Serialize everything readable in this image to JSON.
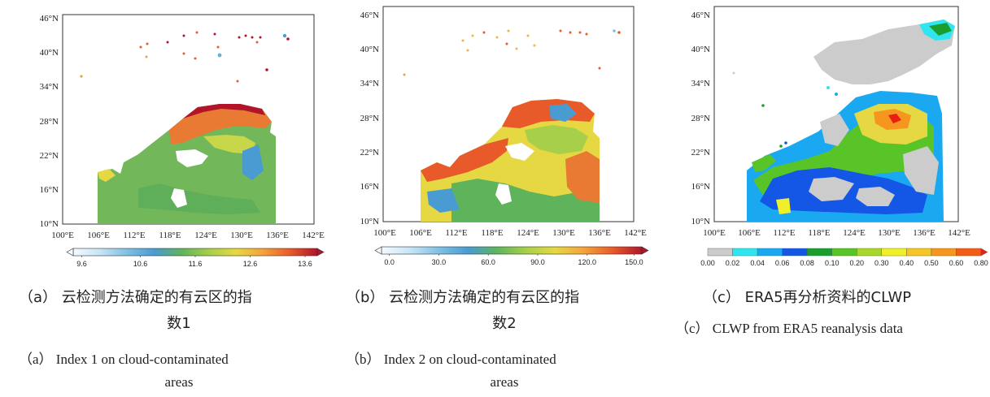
{
  "panels": [
    {
      "id": "a",
      "lat_labels": [
        "46°N",
        "40°N",
        "34°N",
        "28°N",
        "22°N",
        "16°N",
        "10°N"
      ],
      "lon_labels": [
        "100°E",
        "106°E",
        "112°E",
        "118°E",
        "124°E",
        "130°E",
        "136°E",
        "142°E"
      ],
      "colorbar": {
        "ticks": [
          "9.6",
          "10.6",
          "11.6",
          "12.6",
          "13.6"
        ],
        "colors": [
          "#f4fbff",
          "#c6e4f5",
          "#7fbfe3",
          "#4a9bd1",
          "#5fb45b",
          "#a7cf49",
          "#e6d843",
          "#f4a23b",
          "#e85a2a",
          "#b2152a"
        ]
      },
      "caption_cn_line1": "（a） 云检测方法确定的有云区的指",
      "caption_cn_line2": "数1",
      "caption_en_line1": "（a） Index 1 on cloud-contaminated",
      "caption_en_line2": "areas"
    },
    {
      "id": "b",
      "lat_labels": [
        "46°N",
        "40°N",
        "34°N",
        "28°N",
        "22°N",
        "16°N",
        "10°N"
      ],
      "lon_labels": [
        "100°E",
        "106°E",
        "112°E",
        "118°E",
        "124°E",
        "130°E",
        "136°E",
        "142°E"
      ],
      "colorbar": {
        "ticks": [
          "0.0",
          "30.0",
          "60.0",
          "90.0",
          "120.0",
          "150.0"
        ],
        "colors": [
          "#f4fbff",
          "#c6e4f5",
          "#7fbfe3",
          "#4a9bd1",
          "#5fb45b",
          "#a7cf49",
          "#e6d843",
          "#f4a23b",
          "#e85a2a",
          "#b2152a"
        ]
      },
      "caption_cn_line1": "（b） 云检测方法确定的有云区的指",
      "caption_cn_line2": "数2",
      "caption_en_line1": "（b） Index 2 on cloud-contaminated",
      "caption_en_line2": "areas"
    },
    {
      "id": "c",
      "lat_labels": [
        "46°N",
        "40°N",
        "34°N",
        "28°N",
        "22°N",
        "16°N",
        "10°N"
      ],
      "lon_labels": [
        "100°E",
        "106°E",
        "112°E",
        "118°E",
        "124°E",
        "130°E",
        "136°E",
        "142°E"
      ],
      "colorbar": {
        "ticks": [
          "0.00",
          "0.02",
          "0.04",
          "0.06",
          "0.08",
          "0.10",
          "0.20",
          "0.30",
          "0.40",
          "0.50",
          "0.60",
          "0.80"
        ],
        "colors": [
          "#cccccc",
          "#2fe6f0",
          "#1aa9f0",
          "#1456e6",
          "#1a9e2e",
          "#58c428",
          "#a8d62a",
          "#f0f02a",
          "#f6c626",
          "#f6961e",
          "#f25c17",
          "#e62015"
        ]
      },
      "caption_cn_line1": "（c） ERA5再分析资料的CLWP",
      "caption_en_line1": "（c） CLWP from ERA5 reanalysis data"
    }
  ]
}
